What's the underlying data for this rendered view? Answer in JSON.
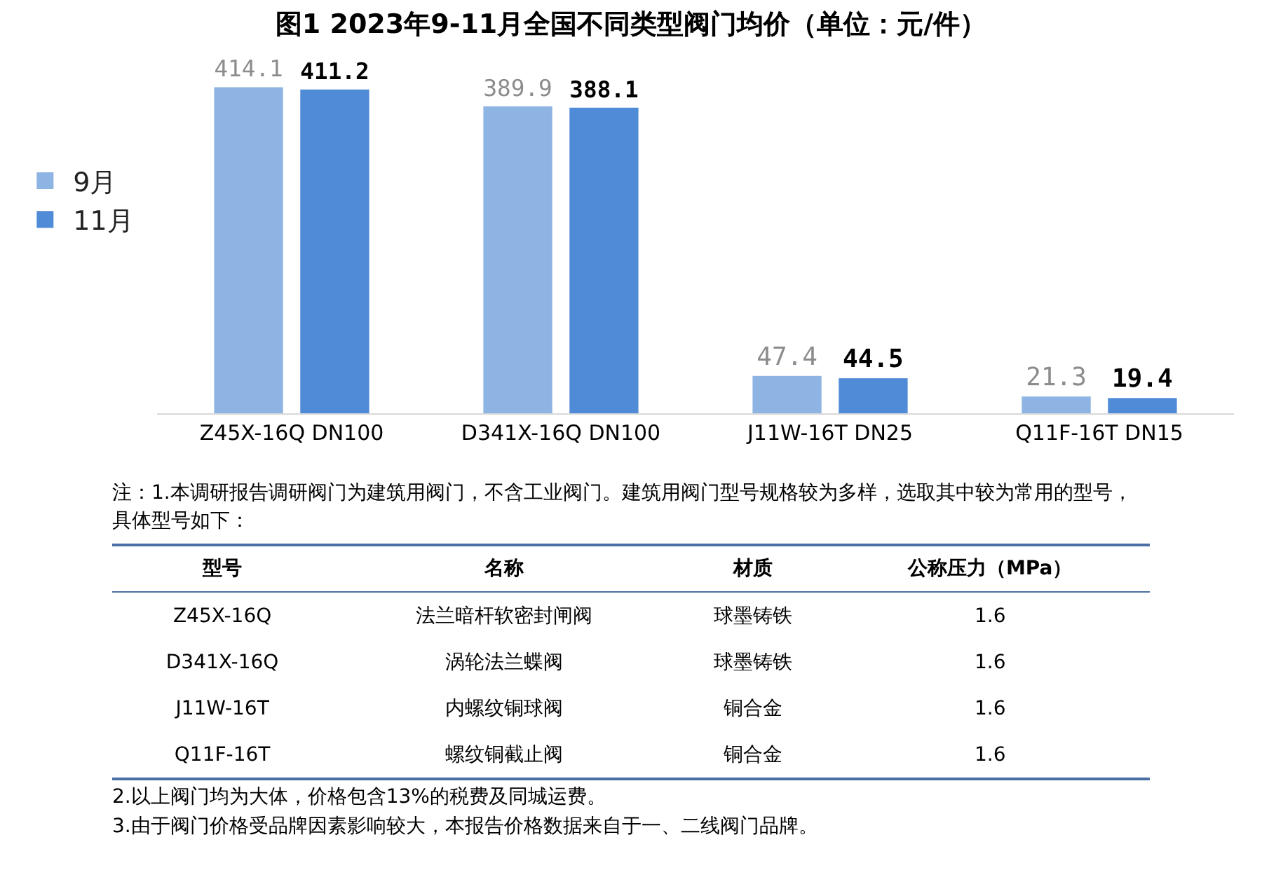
{
  "chart_data": {
    "type": "bar",
    "title": "图1 2023年9-11月全国不同类型阀门均价（单位：元/件）",
    "categories": [
      "Z45X-16Q DN100",
      "D341X-16Q DN100",
      "J11W-16T DN25",
      "Q11F-16T DN15"
    ],
    "series": [
      {
        "name": "9月",
        "color": "#8eb4e3",
        "values": [
          414.1,
          389.9,
          47.4,
          21.3
        ]
      },
      {
        "name": "11月",
        "color": "#4f8bd6",
        "values": [
          411.2,
          388.1,
          44.5,
          19.4
        ]
      }
    ],
    "data_labels": true,
    "tick_labels": "x",
    "grid": false,
    "legend": "left",
    "annotations": [
      "注：1.本调研报告调研阀门为建筑用阀门，不含工业阀门。建筑用阀门型号规格较为多样，选取其中较为常用的型号，具体型号如下：",
      "型号",
      "名称",
      "材质",
      "公称压力（MPa）",
      "Z45X-16Q",
      "法兰暗杆软密封闸阀",
      "球墨铸铁",
      "1.6",
      "D341X-16Q",
      "涡轮法兰蝶阀",
      "球墨铸铁",
      "1.6",
      "J11W-16T",
      "内螺纹铜球阀",
      "铜合金",
      "1.6",
      "Q11F-16T",
      "螺纹铜截止阀",
      "铜合金",
      "1.6",
      "2.以上阀门均为大体，价格包含13%的税费及同城运费。",
      "3.由于阀门价格受品牌因素影响较大，本报告价格数据来自于一、二线阀门品牌。"
    ]
  }
}
